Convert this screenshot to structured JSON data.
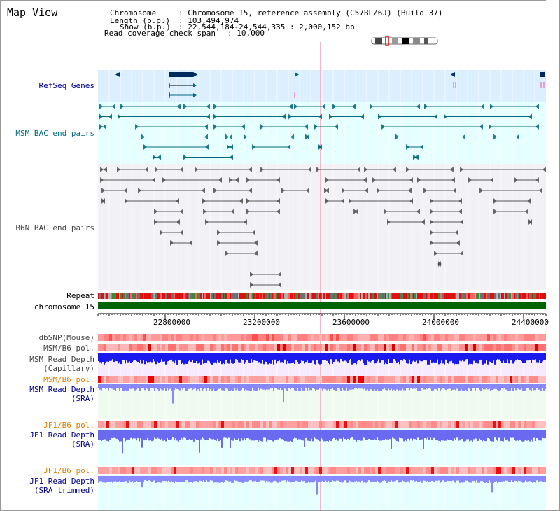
{
  "page": {
    "title": "Map View"
  },
  "header": {
    "chromosome_label": "Chromosome",
    "chromosome_value": ": Chromosome 15, reference assembly (C57BL/6J) (Build 37)",
    "length_label": "Length (b.p.)",
    "length_value": ": 103,494,974",
    "show_label": "Show (b.p.)",
    "show_value": ": 22,544,184-24,544,335 : 2,000,152 bp",
    "coverage_label": "Read coverage check span",
    "coverage_value": ": 10,000"
  },
  "tracks": {
    "refseq": "RefSeq Genes",
    "msm_bac": "MSM BAC end pairs",
    "b6n_bac": "B6N BAC end pairs",
    "repeat": "Repeat",
    "chromosome": "chromosome 15",
    "dbsnp": "dbSNP(Mouse)",
    "msm_b6_pol_1": "MSM/B6 pol.",
    "msm_depth_cap_1": "MSM Read Depth",
    "msm_depth_cap_2": "(Capillary)",
    "msm_b6_pol_2": "MSM/B6 pol.",
    "msm_depth_sra_1": "MSM Read Depth",
    "msm_depth_sra_2": "(SRA)",
    "jf1_b6_pol_1": "JF1/B6 pol.",
    "jf1_depth_sra_1": "JF1 Read Depth",
    "jf1_depth_sra_2": "(SRA)",
    "jf1_b6_pol_2": "JF1/B6 pol.",
    "jf1_depth_trim_1": "JF1 Read Depth",
    "jf1_depth_trim_2": "(SRA trimmed)"
  },
  "ruler": {
    "labels": [
      "22800000",
      "23200000",
      "23600000",
      "24000000",
      "24400000"
    ]
  },
  "colors": {
    "refseq_bg": "#dcefff",
    "msm_bg": "#e6ffff",
    "b6n_bg": "#f2f2f6",
    "msm_track": "#006a80",
    "b6n_track": "#555555",
    "chromosome_bar": "#006400",
    "label_blue": "#00008b",
    "label_teal": "#006a80",
    "label_orange": "#e08000",
    "depth_blue": "#1a1aee",
    "depth_light_blue": "#8888ff"
  }
}
